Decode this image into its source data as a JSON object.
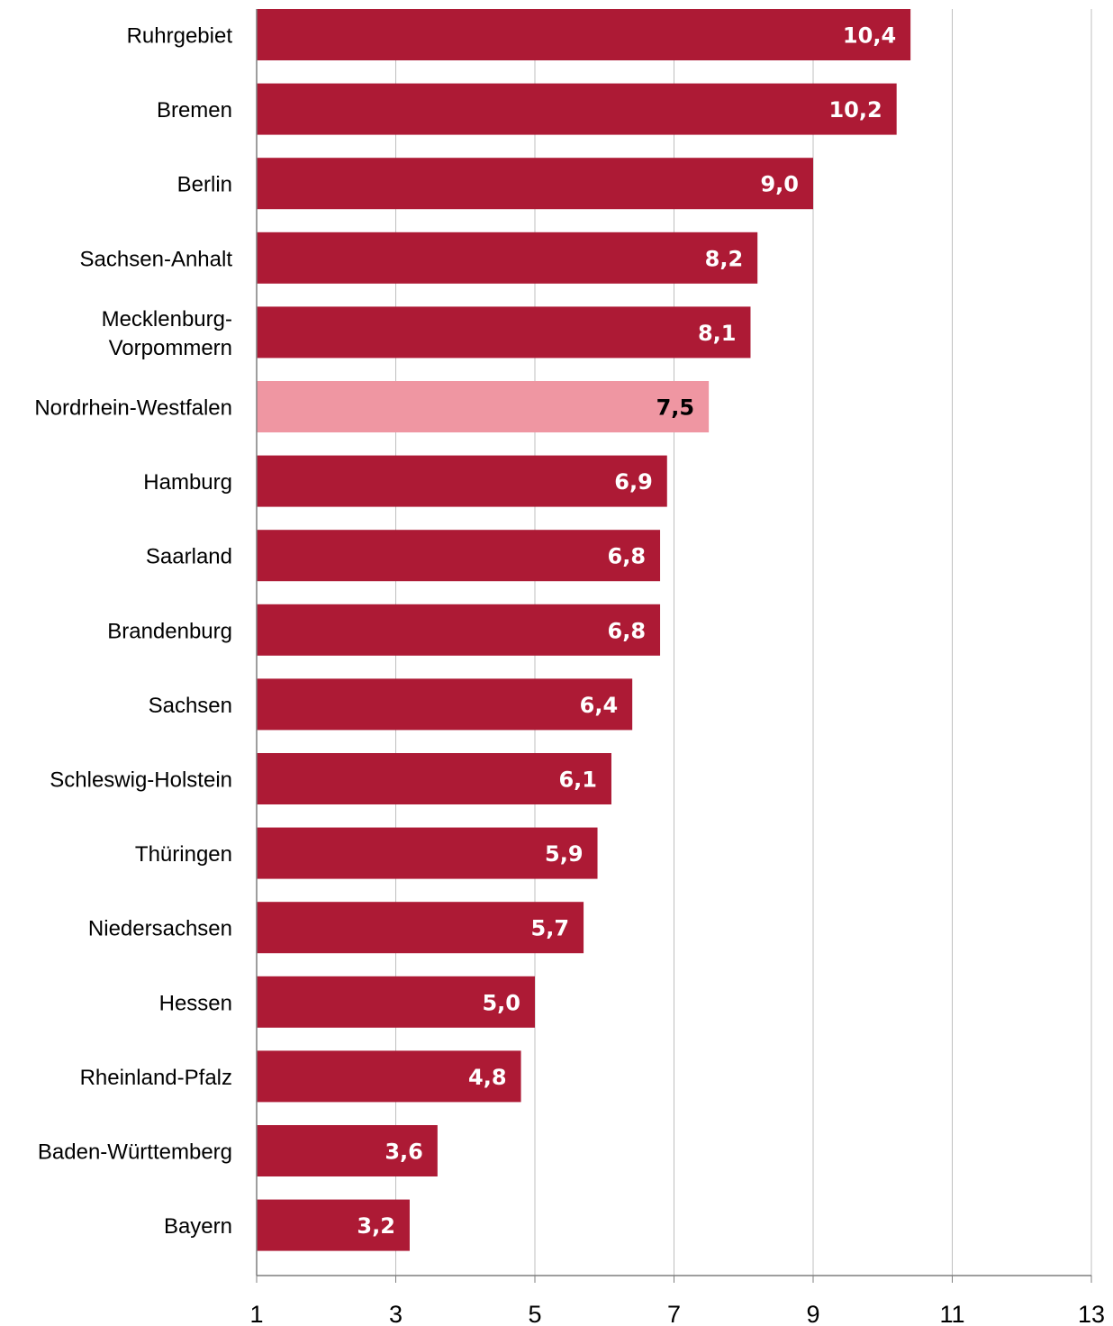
{
  "chart_data": {
    "type": "bar",
    "orientation": "horizontal",
    "title": "",
    "xlabel": "",
    "ylabel": "",
    "xlim": [
      1,
      13
    ],
    "x_ticks": [
      1,
      3,
      5,
      7,
      9,
      11,
      13
    ],
    "grid": "vertical",
    "categories": [
      {
        "lines": [
          "Ruhrgebiet"
        ]
      },
      {
        "lines": [
          "Bremen"
        ]
      },
      {
        "lines": [
          "Berlin"
        ]
      },
      {
        "lines": [
          "Sachsen-Anhalt"
        ]
      },
      {
        "lines": [
          "Mecklenburg-",
          "Vorpommern"
        ]
      },
      {
        "lines": [
          "Nordrhein-Westfalen"
        ]
      },
      {
        "lines": [
          "Hamburg"
        ]
      },
      {
        "lines": [
          "Saarland"
        ]
      },
      {
        "lines": [
          "Brandenburg"
        ]
      },
      {
        "lines": [
          "Sachsen"
        ]
      },
      {
        "lines": [
          "Schleswig-Holstein"
        ]
      },
      {
        "lines": [
          "Thüringen"
        ]
      },
      {
        "lines": [
          "Niedersachsen"
        ]
      },
      {
        "lines": [
          "Hessen"
        ]
      },
      {
        "lines": [
          "Rheinland-Pfalz"
        ]
      },
      {
        "lines": [
          "Baden-Württemberg"
        ]
      },
      {
        "lines": [
          "Bayern"
        ]
      }
    ],
    "values": [
      10.4,
      10.2,
      9.0,
      8.2,
      8.1,
      7.5,
      6.9,
      6.8,
      6.8,
      6.4,
      6.1,
      5.9,
      5.7,
      5.0,
      4.8,
      3.6,
      3.2
    ],
    "value_labels": [
      "10,4",
      "10,2",
      "9,0",
      "8,2",
      "8,1",
      "7,5",
      "6,9",
      "6,8",
      "6,8",
      "6,4",
      "6,1",
      "5,9",
      "5,7",
      "5,0",
      "4,8",
      "3,6",
      "3,2"
    ],
    "highlight_index": 5,
    "colors": {
      "bar": "#ad1a35",
      "highlight_bar": "#ef96a2",
      "value_label": "#ffffff",
      "highlight_value_label": "#000000",
      "grid": "#bfbfbf",
      "axis": "#7f7f7f"
    }
  }
}
